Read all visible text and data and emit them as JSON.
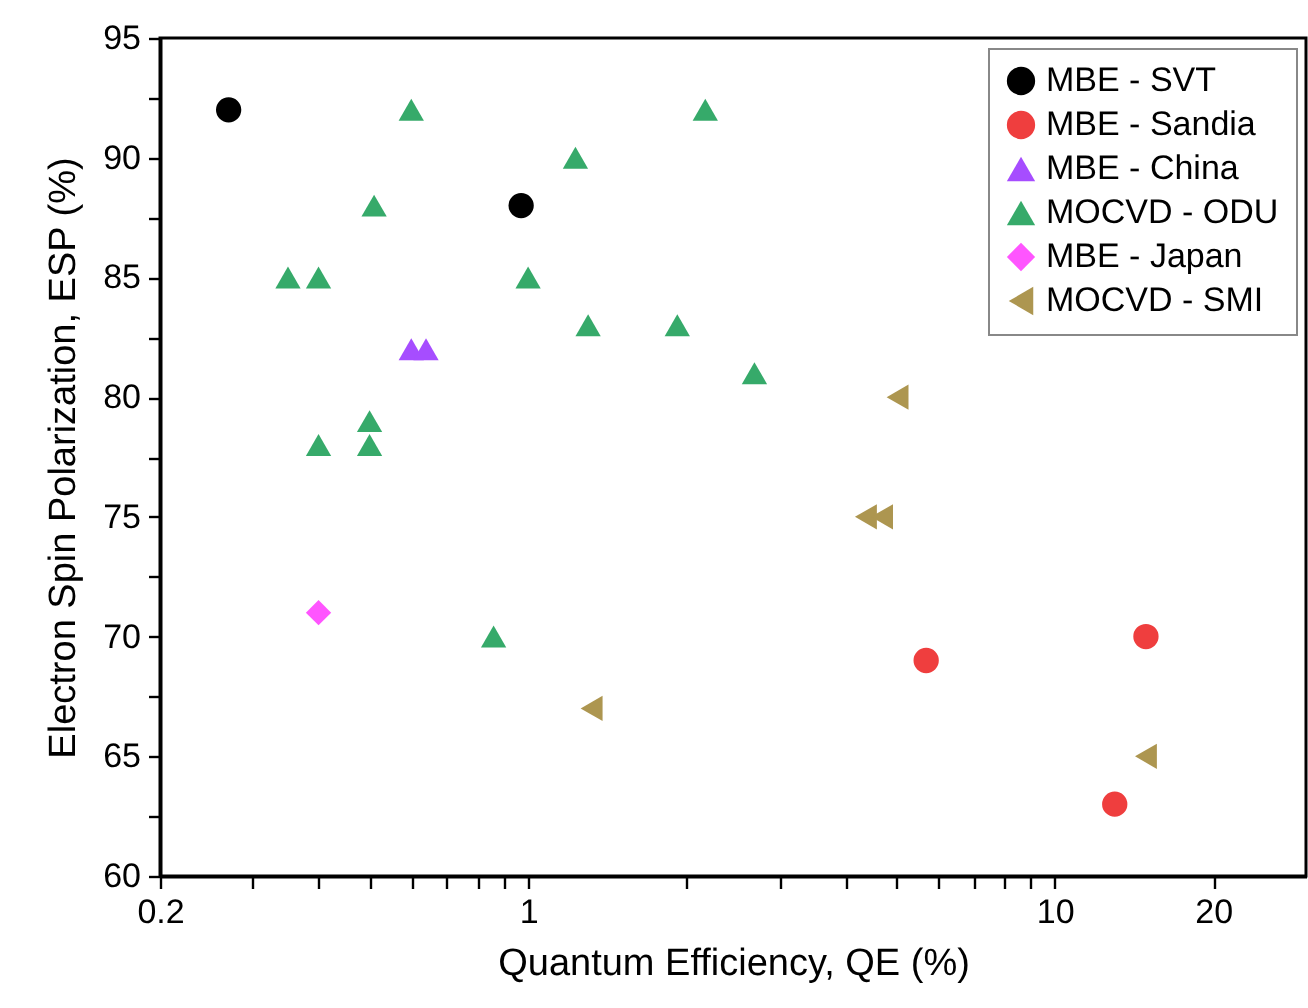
{
  "chart_data": {
    "type": "scatter",
    "xlabel": "Quantum Efficiency, QE (%)",
    "ylabel": "Electron Spin Polarization, ESP (%)",
    "log": "x",
    "grid": false,
    "legend": "top right",
    "xlim": [
      0.2,
      30
    ],
    "xticks": [
      0.2,
      {
        "value": 0.3,
        "label": null
      },
      {
        "value": 0.4,
        "label": null
      },
      {
        "value": 0.5,
        "label": null
      },
      {
        "value": 0.6,
        "label": null
      },
      {
        "value": 0.7,
        "label": null
      },
      {
        "value": 0.8,
        "label": null
      },
      {
        "value": 0.9,
        "label": null
      },
      1,
      {
        "value": 2,
        "label": null
      },
      {
        "value": 3,
        "label": null
      },
      {
        "value": 4,
        "label": null
      },
      {
        "value": 5,
        "label": null
      },
      {
        "value": 6,
        "label": null
      },
      {
        "value": 7,
        "label": null
      },
      {
        "value": 8,
        "label": null
      },
      {
        "value": 9,
        "label": null
      },
      10,
      20
    ],
    "ylim": [
      60,
      95
    ],
    "yticks": [
      60,
      {
        "value": 62.5,
        "label": null
      },
      65,
      {
        "value": 67.5,
        "label": null
      },
      70,
      {
        "value": 72.5,
        "label": null
      },
      75,
      {
        "value": 77.5,
        "label": null
      },
      80,
      {
        "value": 82.5,
        "label": null
      },
      85,
      {
        "value": 87.5,
        "label": null
      },
      90,
      {
        "value": 92.5,
        "label": null
      },
      95
    ],
    "series": [
      {
        "name": "MBE - SVT",
        "color": "#000000",
        "marker": "circle",
        "x": [
          0.27,
          0.97
        ],
        "values": [
          92,
          88
        ]
      },
      {
        "name": "MBE - Sandia",
        "color": "#ef3e3e",
        "marker": "circle",
        "x": [
          5.7,
          14.9,
          13.0
        ],
        "values": [
          69,
          70,
          63
        ]
      },
      {
        "name": "MBE - China",
        "color": "#a64dff",
        "marker": "triangle",
        "x": [
          0.6,
          0.64
        ],
        "values": [
          82,
          82
        ]
      },
      {
        "name": "MOCVD - ODU",
        "color": "#36aa6a",
        "marker": "triangle",
        "x": [
          0.6,
          2.17,
          1.23,
          0.51,
          0.35,
          0.4,
          1.0,
          1.3,
          1.92,
          2.69,
          0.5,
          0.5,
          0.4,
          0.86
        ],
        "values": [
          92,
          92,
          90,
          88,
          85,
          85,
          85,
          83,
          83,
          81,
          79,
          78,
          78,
          70
        ]
      },
      {
        "name": "MBE - Japan",
        "color": "#ff55ff",
        "marker": "diamond",
        "x": [
          0.4
        ],
        "values": [
          71
        ]
      },
      {
        "name": "MOCVD - SMI",
        "color": "#ad9650",
        "marker": "triangle-left",
        "x": [
          1.32,
          4.38,
          4.7,
          5.03,
          14.9
        ],
        "values": [
          67,
          75,
          75,
          80,
          65
        ]
      }
    ]
  }
}
